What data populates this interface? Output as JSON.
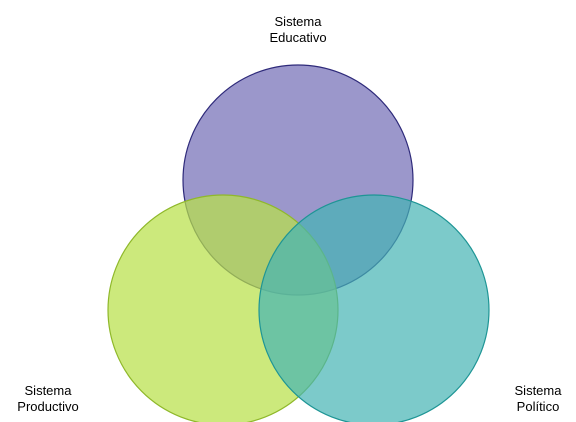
{
  "diagram": {
    "type": "venn",
    "circles": [
      {
        "id": "educativo",
        "lines": [
          "Sistema",
          "Educativo"
        ],
        "fill": "#6B66B3",
        "stroke": "#2E2A7A"
      },
      {
        "id": "productivo",
        "lines": [
          "Sistema",
          "Productivo"
        ],
        "fill": "#B9E04A",
        "stroke": "#8FB82A"
      },
      {
        "id": "politico",
        "lines": [
          "Sistema",
          "Político"
        ],
        "fill": "#45B3B3",
        "stroke": "#1E9595"
      }
    ]
  }
}
